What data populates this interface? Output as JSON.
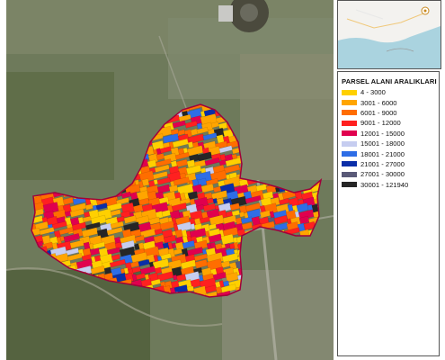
{
  "legend": {
    "title": "PARSEL ALANI ARALIKLARI",
    "items": [
      {
        "label": "4 - 3000",
        "color": "#ffd000"
      },
      {
        "label": "3001 - 6000",
        "color": "#ffa500"
      },
      {
        "label": "6001 - 9000",
        "color": "#ff6d00"
      },
      {
        "label": "9001 - 12000",
        "color": "#ff2020"
      },
      {
        "label": "12001 - 15000",
        "color": "#e0004e"
      },
      {
        "label": "15001 - 18000",
        "color": "#c6cdf0"
      },
      {
        "label": "18001 - 21000",
        "color": "#2e6de6"
      },
      {
        "label": "21001 - 27000",
        "color": "#0a2ea8"
      },
      {
        "label": "27001 - 30000",
        "color": "#5a5a78"
      },
      {
        "label": "30001 - 121940",
        "color": "#262626"
      }
    ]
  }
}
